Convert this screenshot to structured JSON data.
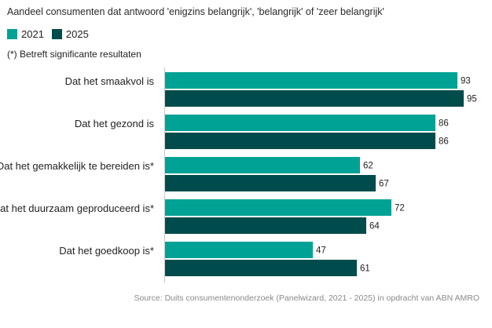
{
  "title": "Aandeel consumenten dat antwoord 'enigzins belangrijk', 'belangrijk' of 'zeer belangrijk'",
  "note": "(*) Betreft significante resultaten",
  "source": "Source:  Duits consumentenonderzoek (Panelwizard, 2021 - 2025) in opdracht van ABN AMRO",
  "colors": {
    "s2021": "#00A295",
    "s2025": "#004C4C"
  },
  "chart_data": {
    "type": "bar",
    "orientation": "horizontal",
    "categories": [
      "Dat het smaakvol is",
      "Dat het gezond is",
      "Dat het gemakkelijk te bereiden is*",
      "Dat het duurzaam geproduceerd is*",
      "Dat het goedkoop is*"
    ],
    "series": [
      {
        "name": "2021",
        "values": [
          93,
          86,
          62,
          72,
          47
        ]
      },
      {
        "name": "2025",
        "values": [
          95,
          86,
          67,
          64,
          61
        ]
      }
    ],
    "xlim": [
      0,
      100
    ],
    "grid": false,
    "legend": "top-left"
  }
}
